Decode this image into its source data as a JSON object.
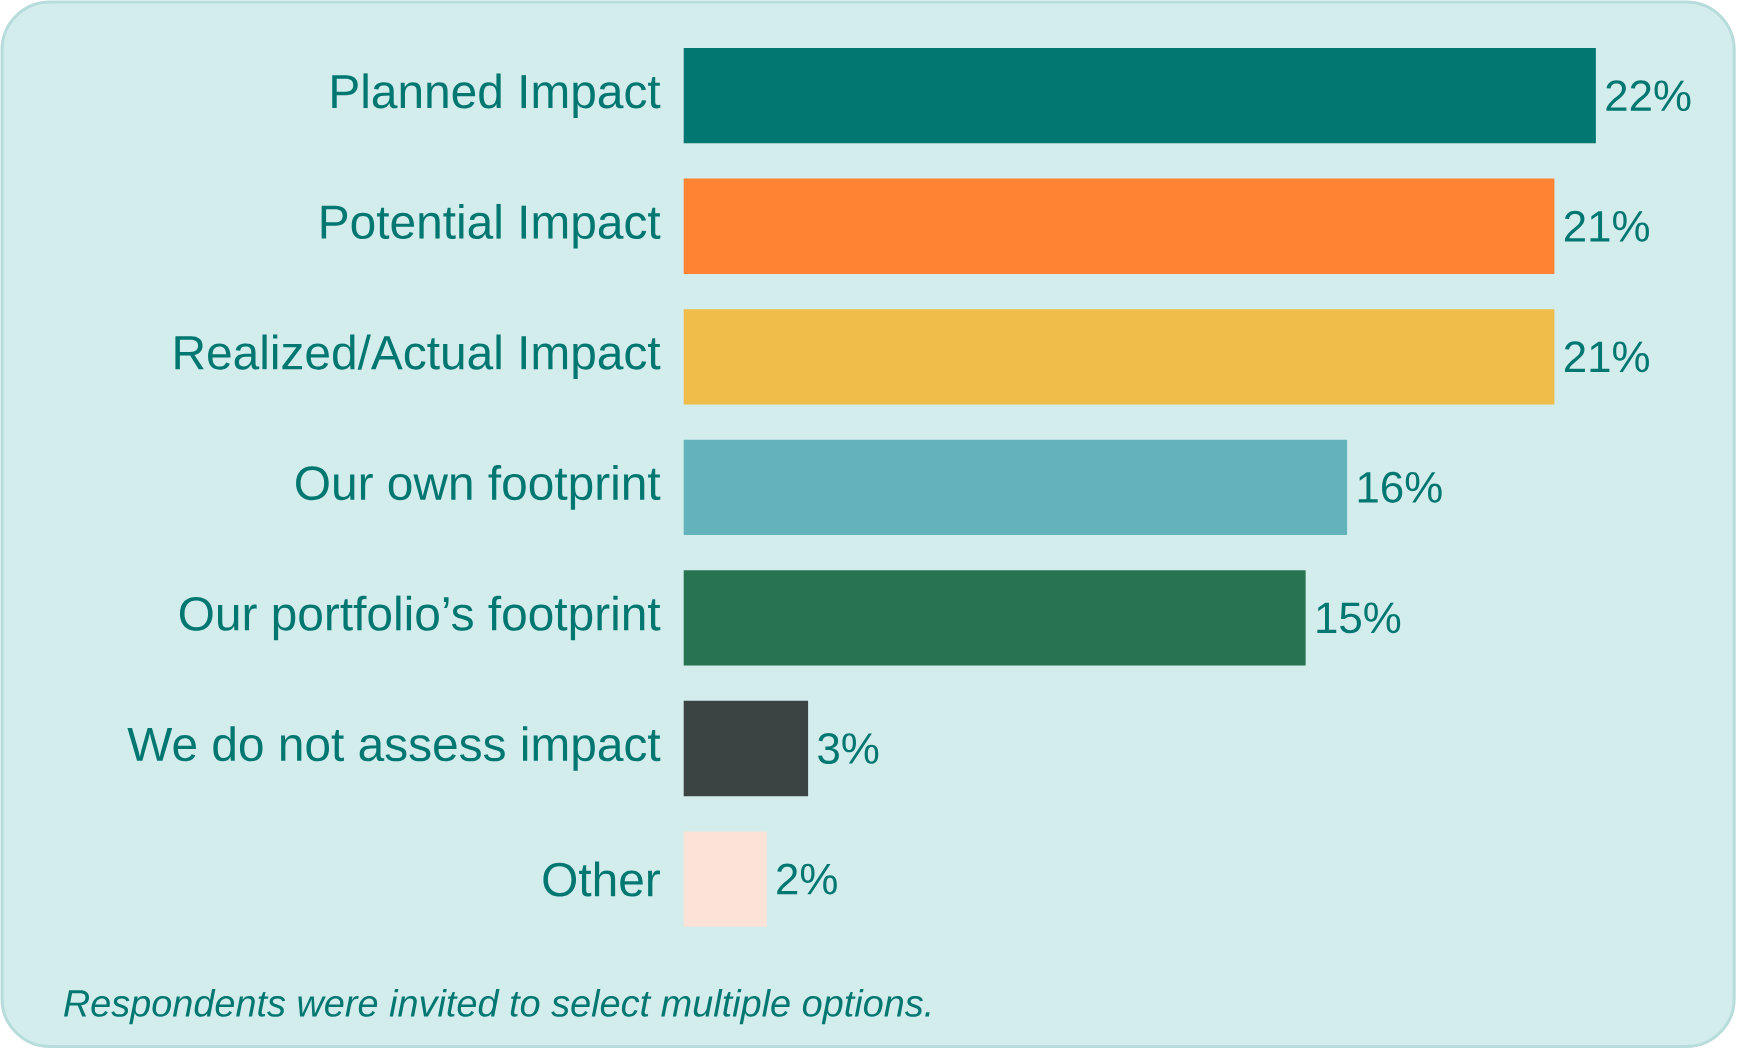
{
  "chart_data": {
    "type": "bar",
    "orientation": "horizontal",
    "categories": [
      "Planned Impact",
      "Potential Impact",
      "Realized/Actual Impact",
      "Our own footprint",
      "Our portfolio’s footprint",
      "We do not assess impact",
      "Other"
    ],
    "values": [
      22,
      21,
      21,
      16,
      15,
      3,
      2
    ],
    "colors": [
      "#007770",
      "#ff8333",
      "#f0bd4a",
      "#63b3bd",
      "#287350",
      "#3c4443",
      "#fde3d7"
    ],
    "value_labels": [
      "22%",
      "21%",
      "21%",
      "16%",
      "15%",
      "3%",
      "2%"
    ],
    "annotations": [
      "*Respondents were invited to select multiple options.*"
    ]
  }
}
